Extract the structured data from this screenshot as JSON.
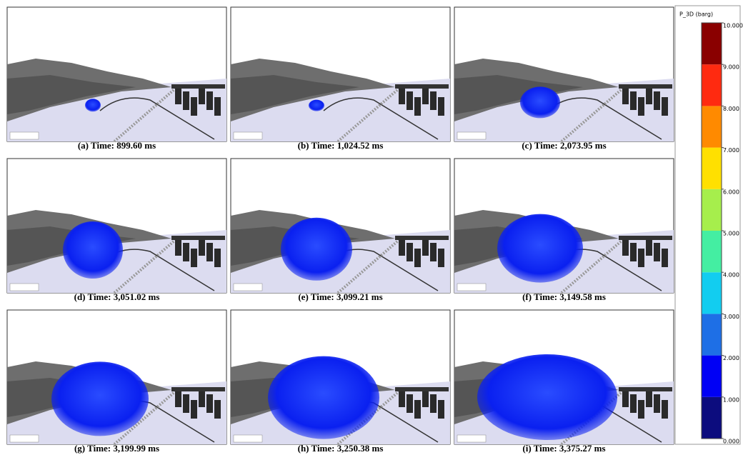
{
  "panels": [
    {
      "caption": "(a) Time: 899.60 ms"
    },
    {
      "caption": "(b) Time: 1,024.52 ms"
    },
    {
      "caption": "(c) Time: 2,073.95 ms"
    },
    {
      "caption": "(d) Time: 3,051.02 ms"
    },
    {
      "caption": "(e) Time: 3,099.21 ms"
    },
    {
      "caption": "(f) Time: 3,149.58 ms"
    },
    {
      "caption": "(g) Time: 3,199.99 ms"
    },
    {
      "caption": "(h) Time: 3,250.38 ms"
    },
    {
      "caption": "(i) Time: 3,375.27 ms"
    }
  ],
  "colorbar": {
    "title": "P_3D (barg)",
    "lim": [
      0,
      10
    ],
    "ticks": [
      {
        "value": 0,
        "label": "0.000"
      },
      {
        "value": 1,
        "label": "1.000"
      },
      {
        "value": 2,
        "label": "2.000"
      },
      {
        "value": 3,
        "label": "3.000"
      },
      {
        "value": 4,
        "label": "4.000"
      },
      {
        "value": 5,
        "label": "5.000"
      },
      {
        "value": 6,
        "label": "6.000"
      },
      {
        "value": 7,
        "label": "7.000"
      },
      {
        "value": 8,
        "label": "8.000"
      },
      {
        "value": 9,
        "label": "9.000"
      },
      {
        "value": 10,
        "label": "10.000"
      }
    ],
    "colors": [
      "#0c0c7e",
      "#0000f5",
      "#1e6fe6",
      "#12cdf0",
      "#44eea2",
      "#a6ee4c",
      "#ffe000",
      "#ff8a00",
      "#ff2a10",
      "#8a0000"
    ]
  }
}
